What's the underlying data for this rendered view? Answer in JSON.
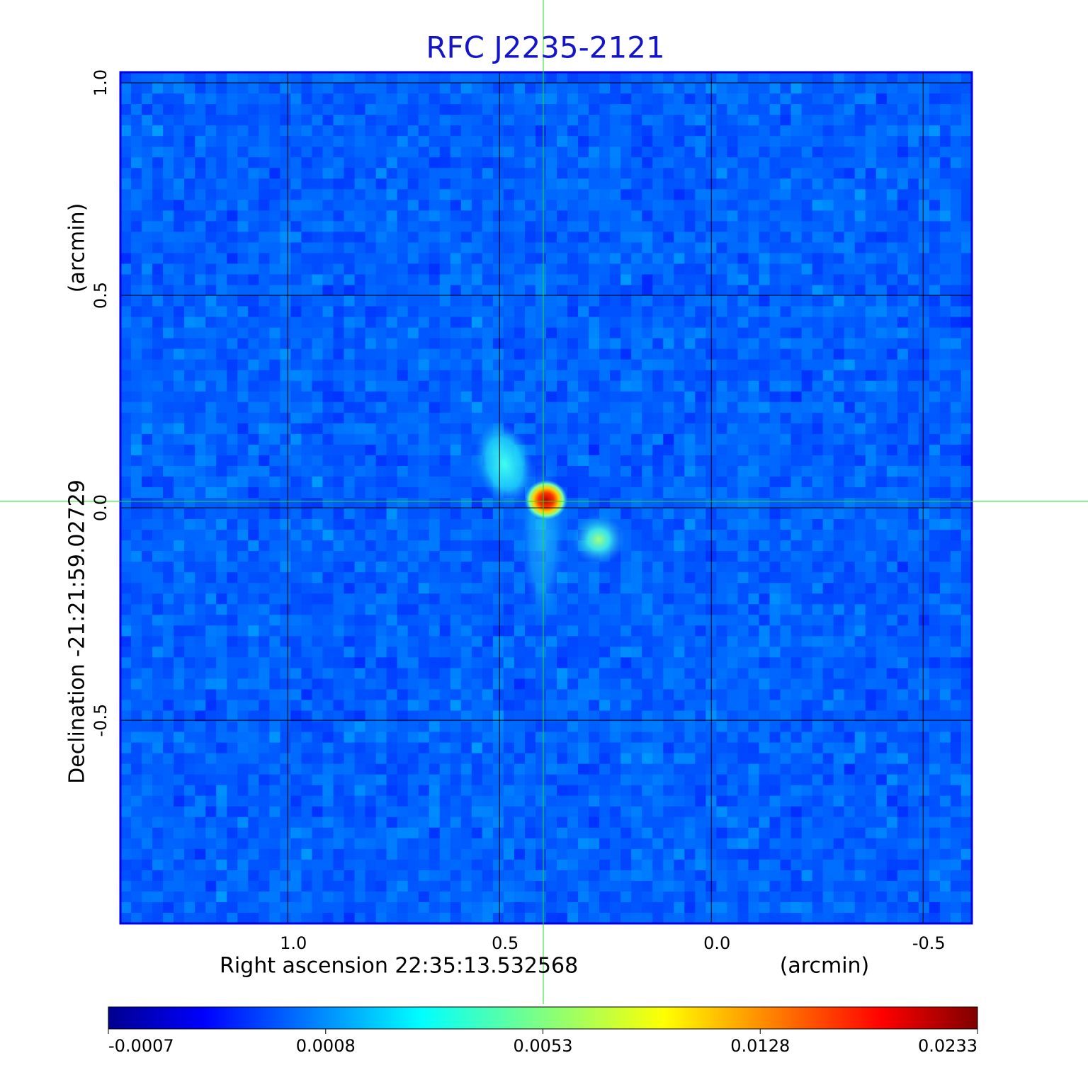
{
  "chart_data": {
    "type": "image",
    "title": "RFC J2235-2121",
    "x_label": "Right ascension  22:35:13.532568",
    "x_unit": "(arcmin)",
    "y_label": "Declination  -21:21:59.02729",
    "y_unit": "(arcmin)",
    "xlim": [
      1.395,
      -0.615
    ],
    "ylim": [
      -0.978,
      1.025
    ],
    "xticks": [
      {
        "value": 1,
        "label": "1.0"
      },
      {
        "value": 0.5,
        "label": "0.5"
      },
      {
        "value": 0,
        "label": "0.0"
      },
      {
        "value": -0.5,
        "label": "-0.5"
      }
    ],
    "yticks": [
      {
        "value": 1,
        "label": "1.0"
      },
      {
        "value": 0.5,
        "label": "0.5"
      },
      {
        "value": 0,
        "label": "0.0"
      },
      {
        "value": -0.5,
        "label": "-0.5"
      }
    ],
    "grid": true,
    "colormap": "jet",
    "colorbar_scale": "sqrt",
    "clim": [
      -0.0007,
      0.0233
    ],
    "colorbar_ticks": [
      -0.0007,
      0.0008,
      0.0053,
      0.0128,
      0.0233
    ]
  }
}
